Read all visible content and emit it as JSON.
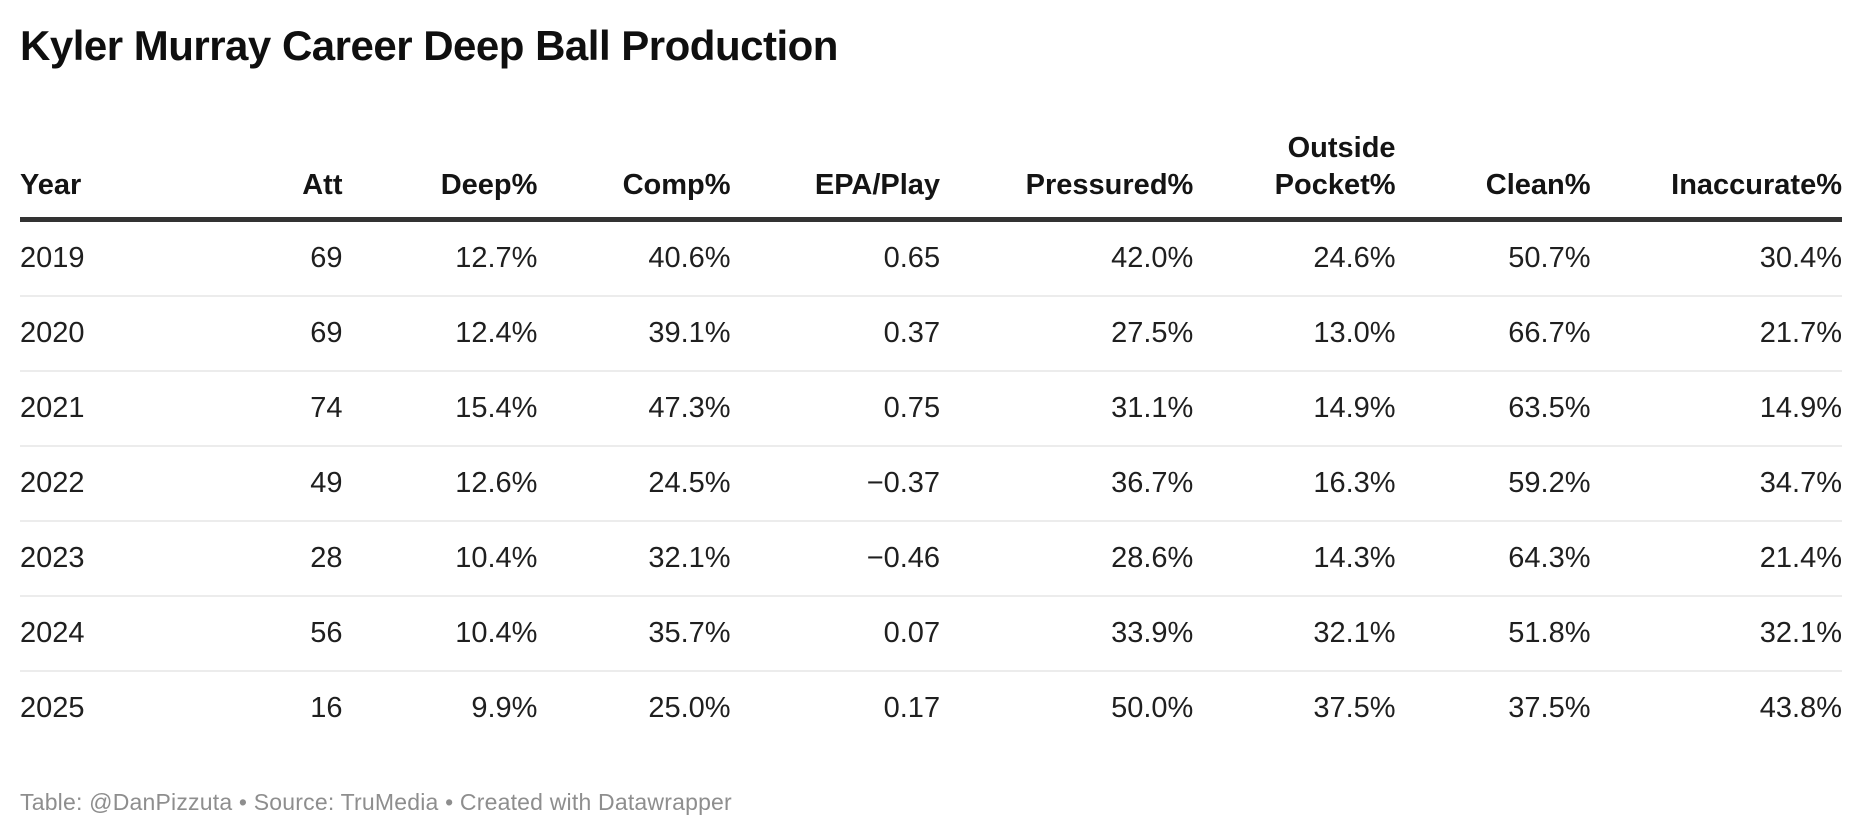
{
  "chart_data": {
    "type": "table",
    "title": "Kyler Murray Career Deep Ball Production",
    "columns": [
      "Year",
      "Att",
      "Deep%",
      "Comp%",
      "EPA/Play",
      "Pressured%",
      "Outside Pocket%",
      "Clean%",
      "Inaccurate%"
    ],
    "rows": [
      [
        "2019",
        "69",
        "12.7%",
        "40.6%",
        "0.65",
        "42.0%",
        "24.6%",
        "50.7%",
        "30.4%"
      ],
      [
        "2020",
        "69",
        "12.4%",
        "39.1%",
        "0.37",
        "27.5%",
        "13.0%",
        "66.7%",
        "21.7%"
      ],
      [
        "2021",
        "74",
        "15.4%",
        "47.3%",
        "0.75",
        "31.1%",
        "14.9%",
        "63.5%",
        "14.9%"
      ],
      [
        "2022",
        "49",
        "12.6%",
        "24.5%",
        "−0.37",
        "36.7%",
        "16.3%",
        "59.2%",
        "34.7%"
      ],
      [
        "2023",
        "28",
        "10.4%",
        "32.1%",
        "−0.46",
        "28.6%",
        "14.3%",
        "64.3%",
        "21.4%"
      ],
      [
        "2024",
        "56",
        "10.4%",
        "35.7%",
        "0.07",
        "33.9%",
        "32.1%",
        "51.8%",
        "32.1%"
      ],
      [
        "2025",
        "16",
        "9.9%",
        "25.0%",
        "0.17",
        "50.0%",
        "37.5%",
        "37.5%",
        "43.8%"
      ]
    ],
    "legend_position": "none",
    "grid": "horizontal-row-separators"
  },
  "footer": {
    "text": "Table: @DanPizzuta • Source: TruMedia • Created with Datawrapper"
  },
  "colors": {
    "title_text": "#0f0f0f",
    "body_text": "#1f1f1f",
    "header_rule": "#333333",
    "row_separator": "#ececec",
    "footer_text": "#8e8e8e",
    "background": "#ffffff"
  }
}
